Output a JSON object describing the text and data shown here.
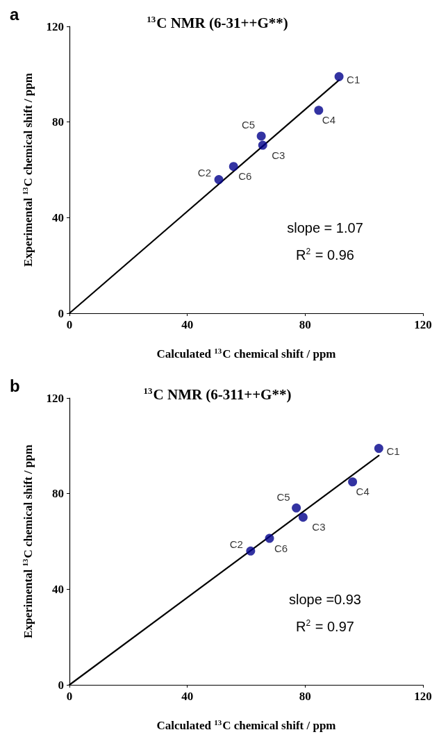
{
  "chart_data": [
    {
      "type": "scatter",
      "title": "$^{13}$C NMR (6-31++G**)",
      "xlabel": "Calculated $^{13}$C chemical shift / ppm",
      "ylabel": "Experimental $^{13}$C chemical shift / ppm",
      "xlim": [
        0,
        120
      ],
      "ylim": [
        0,
        120
      ],
      "xticks": [
        0,
        40,
        80,
        120
      ],
      "yticks": [
        0,
        40,
        80,
        120
      ],
      "grid": false,
      "marker": "circle",
      "series": [
        {
          "color": "#00008b",
          "x": [
            91.5,
            84.6,
            65.1,
            65.6,
            55.7,
            50.7
          ],
          "values": [
            99.0,
            84.9,
            74.1,
            70.3,
            61.4,
            55.9
          ]
        },
        {
          "type": "line",
          "marker": "none",
          "color": "#000000",
          "x": [
            0,
            91.5
          ],
          "values": [
            0,
            97.5
          ]
        }
      ],
      "annotations": [
        "a",
        "slope = 1.07",
        "R$^{2}$ = 0.96",
        {
          "text": "C1",
          "x": 91.5,
          "y": 99.0
        },
        {
          "text": "C4",
          "x": 84.6,
          "y": 84.9
        },
        {
          "text": "C5",
          "x": 65.1,
          "y": 74.1
        },
        {
          "text": "C3",
          "x": 65.6,
          "y": 70.3
        },
        {
          "text": "C6",
          "x": 55.7,
          "y": 61.4
        },
        {
          "text": "C2",
          "x": 50.7,
          "y": 55.9
        }
      ]
    },
    {
      "type": "scatter",
      "title": "$^{13}$C NMR (6-311++G**)",
      "xlabel": "Calculated $^{13}$C chemical shift / ppm",
      "ylabel": "Experimental $^{13}$C chemical shift / ppm",
      "xlim": [
        0,
        120
      ],
      "ylim": [
        0,
        120
      ],
      "xticks": [
        0,
        40,
        80,
        120
      ],
      "yticks": [
        0,
        40,
        80,
        120
      ],
      "grid": false,
      "marker": "circle",
      "series": [
        {
          "color": "#00008b",
          "x": [
            105.0,
            96.1,
            77.0,
            79.3,
            67.9,
            61.5
          ],
          "values": [
            98.9,
            84.9,
            74.0,
            70.1,
            61.3,
            56.0
          ]
        },
        {
          "type": "line",
          "marker": "none",
          "color": "#000000",
          "x": [
            0,
            105.0
          ],
          "values": [
            0,
            95.9
          ]
        }
      ],
      "annotations": [
        "b",
        "slope =0.93",
        "R$^{2}$ = 0.97",
        {
          "text": "C1",
          "x": 105.0,
          "y": 98.9
        },
        {
          "text": "C4",
          "x": 96.1,
          "y": 84.9
        },
        {
          "text": "C5",
          "x": 77.0,
          "y": 74.0
        },
        {
          "text": "C3",
          "x": 79.3,
          "y": 70.1
        },
        {
          "text": "C6",
          "x": 67.9,
          "y": 61.3
        },
        {
          "text": "C2",
          "x": 61.5,
          "y": 56.0
        }
      ]
    }
  ]
}
